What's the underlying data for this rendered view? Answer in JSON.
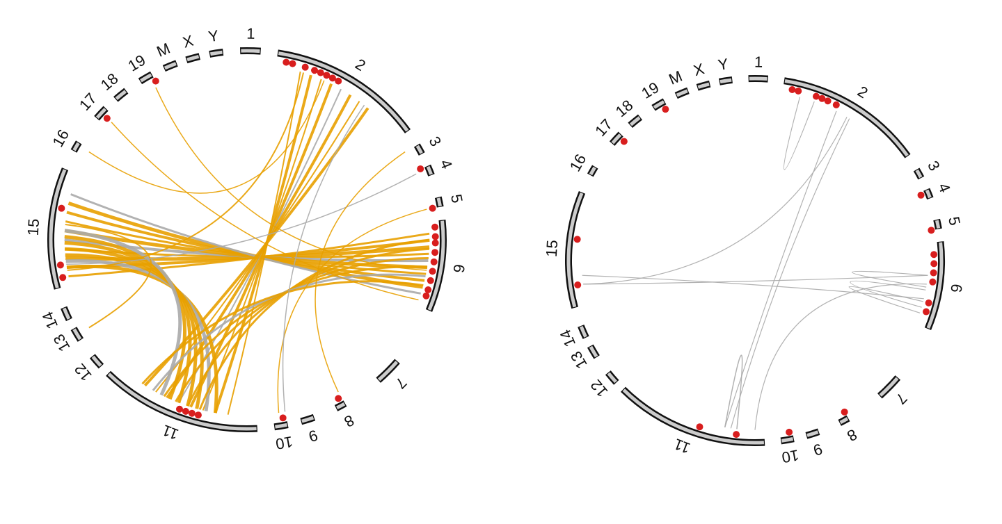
{
  "plots": [
    {
      "chromosomes": [
        "1",
        "2",
        "3",
        "4",
        "5",
        "6",
        "7",
        "8",
        "9",
        "10",
        "11",
        "12",
        "13",
        "14",
        "15",
        "16",
        "17",
        "18",
        "19",
        "M",
        "X",
        "Y"
      ]
    },
    {
      "chromosomes": [
        "1",
        "2",
        "3",
        "4",
        "5",
        "6",
        "7",
        "8",
        "9",
        "10",
        "11",
        "12",
        "13",
        "14",
        "15",
        "16",
        "17",
        "18",
        "19",
        "M",
        "X",
        "Y"
      ]
    }
  ]
}
